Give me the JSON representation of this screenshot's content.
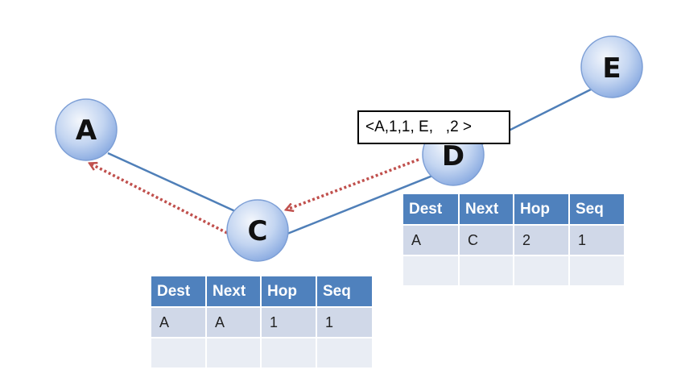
{
  "nodes": {
    "a": {
      "label": "A"
    },
    "c": {
      "label": "C"
    },
    "d": {
      "label": "D"
    },
    "e": {
      "label": "E"
    }
  },
  "message": {
    "text": "<A,1,1, E,   ,2 >"
  },
  "table_headers": {
    "dest": "Dest",
    "next": "Next",
    "hop": "Hop",
    "seq": "Seq"
  },
  "table_c": {
    "rows": [
      {
        "dest": "A",
        "next": "A",
        "hop": "1",
        "seq": "1"
      },
      {
        "dest": "",
        "next": "",
        "hop": "",
        "seq": ""
      }
    ]
  },
  "table_d": {
    "rows": [
      {
        "dest": "A",
        "next": "C",
        "hop": "2",
        "seq": "1"
      },
      {
        "dest": "",
        "next": "",
        "hop": "",
        "seq": ""
      }
    ]
  },
  "colors": {
    "node_fill_light": "#eef3fb",
    "node_fill_dark": "#8fb0e6",
    "link": "#4f7fb8",
    "arrow": "#c0504d",
    "table_header": "#4f81bd"
  }
}
